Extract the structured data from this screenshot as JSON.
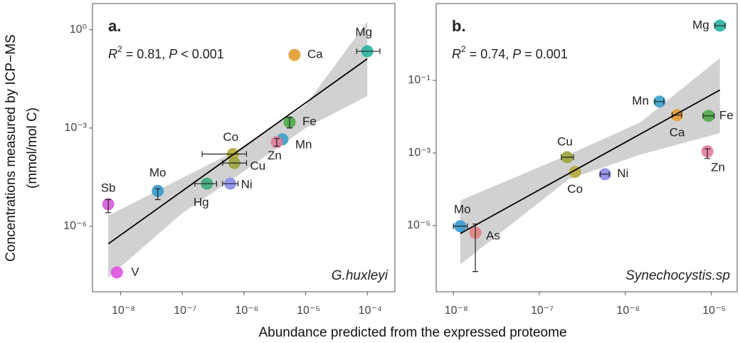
{
  "xlabel": "Abundance predicted from the expressed proteome",
  "ylabel": [
    "Concentrations measured by ICP−MS",
    "(mmol/mol C)"
  ],
  "chart_data": [
    {
      "type": "scatter",
      "panel": "a.",
      "species": "G.huxleyi",
      "stats": [
        "R",
        "2",
        " = 0.81, ",
        "P",
        " < 0.001"
      ],
      "log_x": true,
      "log_y": true,
      "xlim": [
        3.5e-09,
        0.00028
      ],
      "ylim": [
        1e-08,
        6.3
      ],
      "xticks": [
        {
          "value": 1e-08,
          "label": "10⁻⁸"
        },
        {
          "value": 1e-07,
          "label": "10⁻⁷"
        },
        {
          "value": 1e-06,
          "label": "10⁻⁶"
        },
        {
          "value": 1e-05,
          "label": "10⁻⁵"
        },
        {
          "value": 0.0001,
          "label": "10⁻⁴"
        }
      ],
      "yticks": [
        {
          "value": 1,
          "label": "10⁰"
        },
        {
          "value": 0.001,
          "label": "10⁻³"
        },
        {
          "value": 1e-06,
          "label": "10⁻⁶"
        }
      ],
      "points": [
        {
          "label": "Mg",
          "x": 0.0001,
          "y": 0.22,
          "color": "#26b3a0",
          "xerr": [
            6.7e-05,
            0.00016
          ]
        },
        {
          "label": "Ca",
          "x": 6.6e-06,
          "y": 0.17,
          "color": "#e39a2d"
        },
        {
          "label": "Fe",
          "x": 5.5e-06,
          "y": 0.0015,
          "color": "#4fa84a",
          "yerr": [
            0.001,
            0.0021
          ]
        },
        {
          "label": "Mn",
          "x": 4.2e-06,
          "y": 0.00045,
          "color": "#3aa0c8"
        },
        {
          "label": "Zn",
          "x": 3.4e-06,
          "y": 0.00037,
          "color": "#e27a9a",
          "yerr": [
            0.00028,
            0.00048
          ]
        },
        {
          "label": "Co",
          "x": 6.6e-07,
          "y": 0.00016,
          "color": "#b8a83a",
          "xerr": [
            2.1e-07,
            1.1e-06
          ]
        },
        {
          "label": "Cu",
          "x": 7e-07,
          "y": 8.5e-05,
          "color": "#9aa33a",
          "xerr": [
            4.5e-07,
            1.1e-06
          ]
        },
        {
          "label": "Ni",
          "x": 6e-07,
          "y": 2e-05,
          "color": "#8b8be8",
          "xerr": [
            4.5e-07,
            8e-07
          ]
        },
        {
          "label": "Hg",
          "x": 2.5e-07,
          "y": 2e-05,
          "color": "#3aa878",
          "xerr": [
            1.6e-07,
            3.6e-07
          ]
        },
        {
          "label": "Mo",
          "x": 4e-08,
          "y": 1.2e-05,
          "color": "#3398d0",
          "yerr": [
            6.5e-06,
            1.4e-05
          ]
        },
        {
          "label": "Sb",
          "x": 6.3e-09,
          "y": 4.7e-06,
          "color": "#d65ad6",
          "yerr": [
            2.6e-06,
            6.5e-06
          ]
        },
        {
          "label": "V",
          "x": 8.7e-09,
          "y": 3.9e-08,
          "color": "#e050e0"
        }
      ],
      "fit": {
        "x": [
          6.3e-09,
          0.0001
        ],
        "y": [
          2.9e-07,
          0.13
        ]
      },
      "band": {
        "x": [
          6.3e-09,
          1e-07,
          7e-07,
          1e-05,
          0.0001
        ],
        "upper": [
          2.1e-06,
          3e-05,
          0.00019,
          0.005,
          1.8
        ],
        "lower": [
          2.7e-08,
          2.5e-06,
          3e-05,
          0.001,
          0.0095
        ]
      }
    },
    {
      "type": "scatter",
      "panel": "b.",
      "species": "Synechocystis.sp",
      "stats": [
        "R",
        "2",
        " = 0.74, ",
        "P",
        " = 0.001"
      ],
      "log_x": true,
      "log_y": true,
      "xlim": [
        6.3e-09,
        2e-05
      ],
      "ylim": [
        1.5e-07,
        13
      ],
      "xticks": [
        {
          "value": 1e-08,
          "label": "10⁻⁸"
        },
        {
          "value": 1e-07,
          "label": "10⁻⁷"
        },
        {
          "value": 1e-06,
          "label": "10⁻⁶"
        },
        {
          "value": 1e-05,
          "label": "10⁻⁵"
        }
      ],
      "yticks": [
        {
          "value": 0.1,
          "label": "10⁻¹"
        },
        {
          "value": 0.001,
          "label": "10⁻³"
        },
        {
          "value": 1e-05,
          "label": "10⁻⁵"
        }
      ],
      "points": [
        {
          "label": "Mg",
          "x": 1.26e-05,
          "y": 3.2,
          "color": "#26b3a0",
          "xerr": [
            1.1e-05,
            1.45e-05
          ]
        },
        {
          "label": "Mn",
          "x": 2.5e-06,
          "y": 0.026,
          "color": "#3aa0c8",
          "xerr": [
            2.2e-06,
            2.8e-06
          ]
        },
        {
          "label": "Ca",
          "x": 4e-06,
          "y": 0.011,
          "color": "#e39a2d",
          "xerr": [
            3.5e-06,
            4.5e-06
          ]
        },
        {
          "label": "Fe",
          "x": 9.3e-06,
          "y": 0.0105,
          "color": "#4fa84a",
          "xerr": [
            8e-06,
            1.08e-05
          ]
        },
        {
          "label": "Zn",
          "x": 9e-06,
          "y": 0.0011,
          "color": "#e27a9a",
          "yerr": [
            0.0007,
            0.0013
          ]
        },
        {
          "label": "Cu",
          "x": 2.1e-07,
          "y": 0.00076,
          "color": "#9aa33a",
          "xerr": [
            1.8e-07,
            2.5e-07
          ]
        },
        {
          "label": "Co",
          "x": 2.6e-07,
          "y": 0.0003,
          "color": "#b8a83a"
        },
        {
          "label": "Ni",
          "x": 5.8e-07,
          "y": 0.00026,
          "color": "#8b8be8",
          "xerr": [
            5.1e-07,
            6.5e-07
          ]
        },
        {
          "label": "Mo",
          "x": 1.2e-08,
          "y": 9.6e-06,
          "color": "#3398d0",
          "xerr": [
            1e-08,
            1.45e-08
          ]
        },
        {
          "label": "As",
          "x": 1.8e-08,
          "y": 6.3e-06,
          "color": "#e08080",
          "yerr": [
            5.4e-07,
            1.1e-05
          ]
        }
      ],
      "fit": {
        "x": [
          1.2e-08,
          1.26e-05
        ],
        "y": [
          6e-06,
          0.054
        ]
      },
      "band": {
        "x": [
          1.2e-08,
          2.2e-07,
          1.5e-06,
          1.26e-05
        ],
        "upper": [
          4.9e-05,
          0.0009,
          0.007,
          0.41
        ],
        "lower": [
          8.5e-07,
          0.00019,
          0.0009,
          0.0035
        ]
      }
    }
  ]
}
